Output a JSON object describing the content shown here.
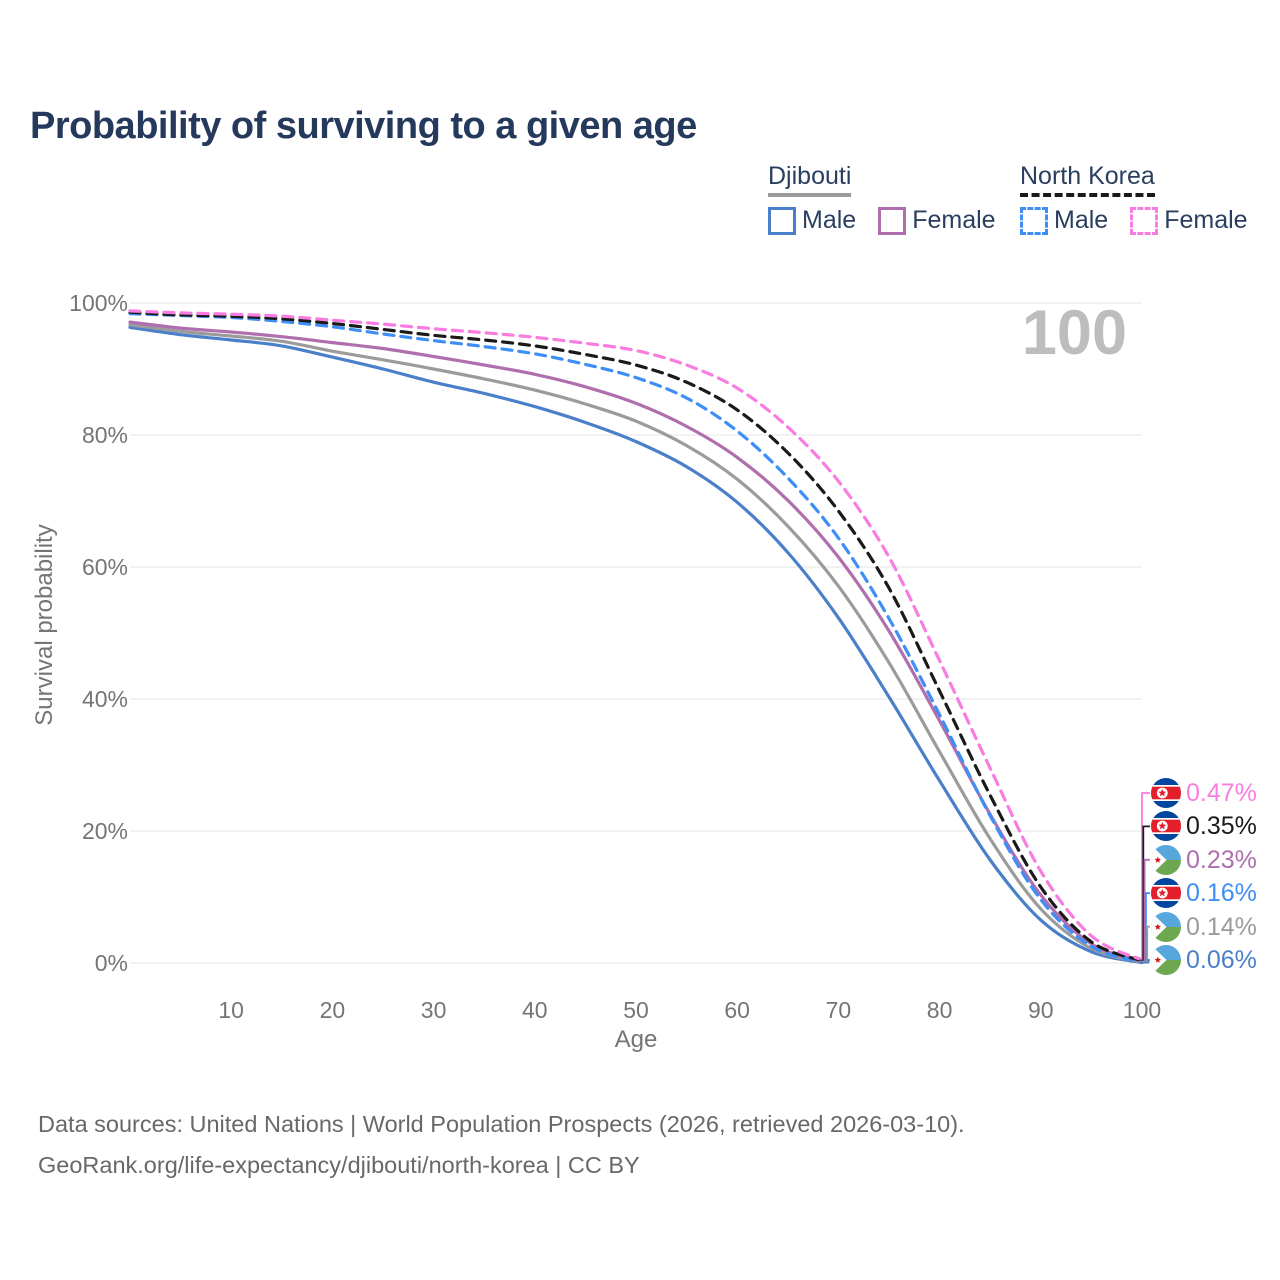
{
  "title": "Probability of surviving to a given age",
  "watermark": "100",
  "legend": {
    "groups": [
      {
        "id": "djibouti",
        "label": "Djibouti",
        "line_style": "solid",
        "underline_color": "#9b9b9b",
        "items": [
          {
            "label": "Male",
            "color": "#4a7fc9"
          },
          {
            "label": "Female",
            "color": "#af6fae"
          }
        ]
      },
      {
        "id": "north-korea",
        "label": "North Korea",
        "line_style": "dashed",
        "underline_color": "#1a1a1a",
        "items": [
          {
            "label": "Male",
            "color": "#3e8ef7"
          },
          {
            "label": "Female",
            "color": "#f97ce1"
          }
        ]
      }
    ]
  },
  "chart_data": {
    "type": "line",
    "title": "Probability of surviving to a given age",
    "xlabel": "Age",
    "ylabel": "Survival probability",
    "xlim": [
      0,
      100
    ],
    "ylim": [
      0,
      100
    ],
    "grid": "horizontal",
    "x_tick_values": [
      10,
      20,
      30,
      40,
      50,
      60,
      70,
      80,
      90,
      100
    ],
    "x_tick_labels": [
      "10",
      "20",
      "30",
      "40",
      "50",
      "60",
      "70",
      "80",
      "90",
      "100"
    ],
    "y_tick_values": [
      0,
      20,
      40,
      60,
      80,
      100
    ],
    "y_tick_labels": [
      "0%",
      "20%",
      "40%",
      "60%",
      "80%",
      "100%"
    ],
    "x": [
      0,
      5,
      10,
      15,
      20,
      25,
      30,
      35,
      40,
      45,
      50,
      55,
      60,
      65,
      70,
      75,
      80,
      85,
      90,
      95,
      100
    ],
    "series": [
      {
        "id": "djibouti-male",
        "name": "Djibouti Male",
        "country": "djibouti",
        "sex": "male",
        "color": "#4a7fc9",
        "dash": false,
        "end_label": "0.06%",
        "values": [
          96.3,
          95.2,
          94.4,
          93.5,
          91.8,
          90.0,
          88.0,
          86.3,
          84.3,
          81.9,
          79.0,
          75.2,
          69.8,
          62.2,
          52.3,
          40.3,
          27.6,
          15.6,
          6.5,
          1.7,
          0.06
        ]
      },
      {
        "id": "djibouti-both",
        "name": "Djibouti Both sexes",
        "country": "djibouti",
        "sex": "both",
        "color": "#9b9b9b",
        "dash": false,
        "end_label": "0.14%",
        "values": [
          96.7,
          95.7,
          95.0,
          94.2,
          92.7,
          91.4,
          90.0,
          88.5,
          86.8,
          84.7,
          82.1,
          78.4,
          73.3,
          66.2,
          57.1,
          45.5,
          32.0,
          18.8,
          8.2,
          2.2,
          0.14
        ]
      },
      {
        "id": "djibouti-female",
        "name": "Djibouti Female",
        "country": "djibouti",
        "sex": "female",
        "color": "#af6fae",
        "dash": false,
        "end_label": "0.23%",
        "values": [
          97.1,
          96.2,
          95.6,
          94.9,
          94.0,
          93.1,
          91.9,
          90.6,
          89.2,
          87.3,
          84.8,
          81.3,
          76.6,
          70.1,
          61.5,
          50.3,
          36.7,
          22.5,
          10.3,
          2.9,
          0.23
        ]
      },
      {
        "id": "north-korea-male",
        "name": "North Korea Male",
        "country": "north-korea",
        "sex": "male",
        "color": "#3e8ef7",
        "dash": true,
        "end_label": "0.16%",
        "values": [
          98.4,
          98.1,
          97.8,
          97.2,
          96.4,
          95.3,
          94.3,
          93.4,
          92.3,
          90.7,
          88.7,
          85.6,
          80.6,
          73.5,
          64.4,
          52.2,
          37.6,
          22.3,
          9.6,
          2.5,
          0.16
        ]
      },
      {
        "id": "north-korea-both",
        "name": "North Korea Both sexes",
        "country": "north-korea",
        "sex": "both",
        "color": "#1a1a1a",
        "dash": true,
        "end_label": "0.35%",
        "values": [
          98.6,
          98.2,
          98.0,
          97.6,
          96.9,
          96.0,
          95.1,
          94.4,
          93.5,
          92.2,
          90.6,
          88.0,
          83.8,
          77.3,
          68.5,
          56.8,
          41.2,
          25.4,
          11.5,
          3.2,
          0.35
        ]
      },
      {
        "id": "north-korea-female",
        "name": "North Korea Female",
        "country": "north-korea",
        "sex": "female",
        "color": "#f97ce1",
        "dash": true,
        "end_label": "0.47%",
        "values": [
          98.8,
          98.5,
          98.3,
          98.0,
          97.4,
          96.8,
          96.1,
          95.5,
          94.8,
          93.9,
          92.8,
          90.6,
          87.1,
          81.2,
          73.0,
          61.5,
          45.8,
          29.5,
          13.9,
          4.1,
          0.47
        ]
      }
    ],
    "legend_position": "top-right",
    "watermark": "100"
  },
  "footer": {
    "line1": "Data sources: United Nations | World Population Prospects (2026, retrieved 2026-03-10).",
    "line2": "GeoRank.org/life-expectancy/djibouti/north-korea | CC BY"
  }
}
